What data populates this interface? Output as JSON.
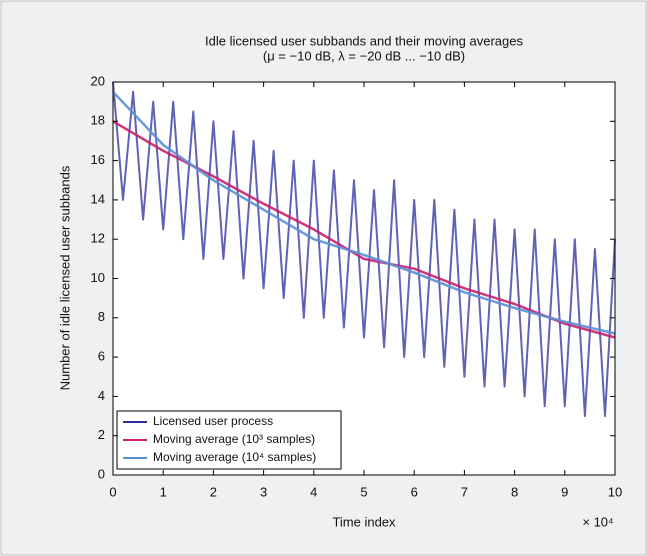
{
  "chart_data": {
    "type": "line",
    "title": "Idle licensed user subbands and their moving averages",
    "subtitle": "(μ = −10 dB, λ = −20 dB ... −10 dB)",
    "x_label": "Time index",
    "y_label": "Number of idle licensed user subbands",
    "x_exponent": "× 10⁴",
    "xlim": [
      0,
      100000
    ],
    "xticks": [
      0,
      {
        "value": 10000,
        "label": "1"
      },
      {
        "value": 20000,
        "label": "2"
      },
      {
        "value": 30000,
        "label": "3"
      },
      {
        "value": 40000,
        "label": "4"
      },
      {
        "value": 50000,
        "label": "5"
      },
      {
        "value": 60000,
        "label": "6"
      },
      {
        "value": 70000,
        "label": "7"
      },
      {
        "value": 80000,
        "label": "8"
      },
      {
        "value": 90000,
        "label": "9"
      },
      {
        "value": 100000,
        "label": "10"
      }
    ],
    "ylim": [
      0,
      20
    ],
    "yticks": [
      0,
      2,
      4,
      6,
      8,
      10,
      12,
      14,
      16,
      18,
      20
    ],
    "legend": "lower left",
    "series": [
      {
        "name": "Licensed user process",
        "color": "#2b2e9c",
        "x": [
          0,
          2000,
          4000,
          6000,
          8000,
          10000,
          12000,
          14000,
          16000,
          18000,
          20000,
          22000,
          24000,
          26000,
          28000,
          30000,
          32000,
          34000,
          36000,
          38000,
          40000,
          42000,
          44000,
          46000,
          48000,
          50000,
          52000,
          54000,
          56000,
          58000,
          60000,
          62000,
          64000,
          66000,
          68000,
          70000,
          72000,
          74000,
          76000,
          78000,
          80000,
          82000,
          84000,
          86000,
          88000,
          90000,
          92000,
          94000,
          96000,
          98000,
          100000
        ],
        "values": [
          20,
          14,
          19.5,
          13,
          19,
          12.5,
          19,
          12,
          18.5,
          11,
          18,
          11,
          17.5,
          10,
          17,
          9.5,
          16.5,
          9,
          16,
          8,
          16,
          8,
          15.5,
          7.5,
          15,
          7,
          14.5,
          6.5,
          15,
          6,
          14,
          6,
          14,
          5.5,
          13.5,
          5,
          13,
          4.5,
          13,
          4.5,
          12.5,
          4,
          12.5,
          3.5,
          12,
          3.5,
          12,
          3,
          11.5,
          3,
          12
        ]
      },
      {
        "name": "Moving average (10³ samples)",
        "color": "#c8206e",
        "x": [
          0,
          10000,
          20000,
          25000,
          30000,
          40000,
          50000,
          60000,
          70000,
          80000,
          90000,
          100000
        ],
        "values": [
          18,
          16.5,
          15.2,
          14.5,
          13.8,
          12.5,
          11,
          10.5,
          9.5,
          8.7,
          7.7,
          7
        ]
      },
      {
        "name": "Moving average (10⁴ samples)",
        "color": "#5b8fd6",
        "x": [
          0,
          10000,
          20000,
          30000,
          40000,
          50000,
          60000,
          70000,
          80000,
          90000,
          100000
        ],
        "values": [
          19.5,
          16.8,
          15,
          13.5,
          12,
          11.2,
          10.3,
          9.3,
          8.5,
          7.8,
          7.2
        ]
      }
    ]
  }
}
